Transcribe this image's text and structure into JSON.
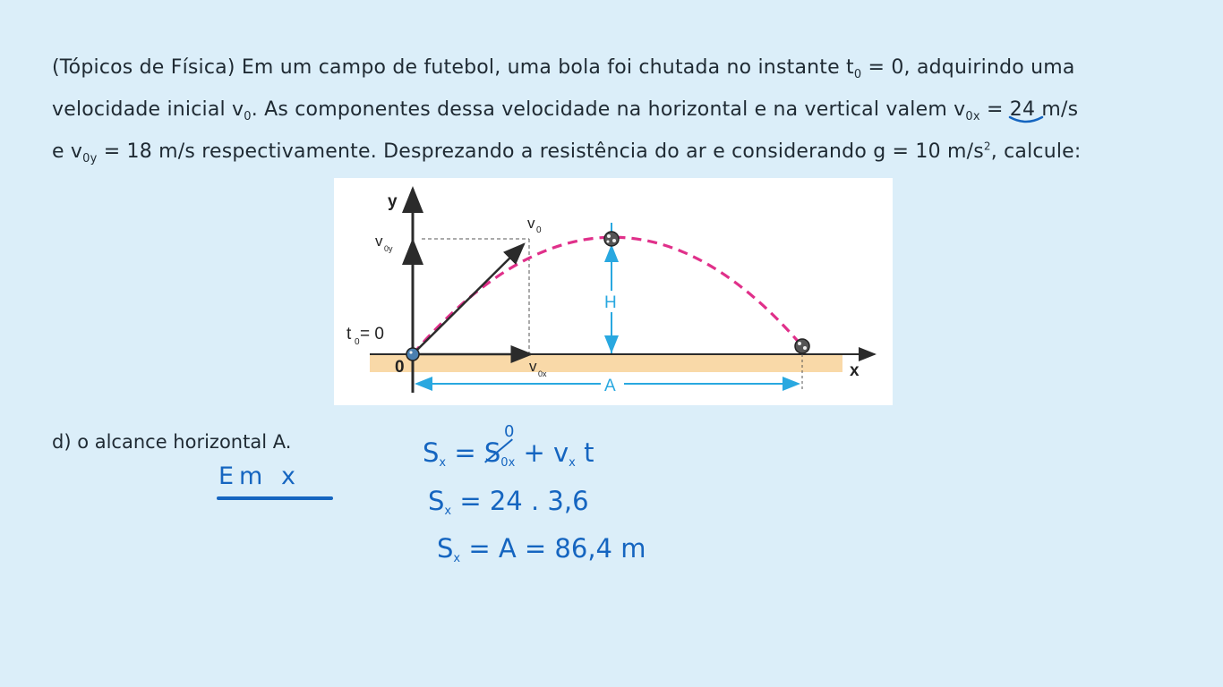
{
  "problem": {
    "line1": {
      "text": "(Tópicos de Física) Em um campo de futebol, uma bola foi chutada no instante t",
      "sub": "0",
      "text_after": " = 0, adquirindo uma"
    },
    "line2": {
      "text": "velocidade inicial v",
      "sub": "0",
      "text_mid": ". As componentes dessa velocidade na horizontal e na vertical valem v",
      "sub2": "0x",
      "text_eq": " = ",
      "value": "24",
      "text_after": " m/s"
    },
    "line3": {
      "text": "e v",
      "sub": "0y",
      "text_mid": " = 18 m/s respectivamente. Desprezando a resistência do ar e considerando g = 10 m/s",
      "sup": "2",
      "text_after": ", calcule:"
    }
  },
  "figure": {
    "y_label": "y",
    "x_label": "x",
    "v0_label": "v",
    "v0_sub": "0",
    "v0y_label": "v",
    "v0y_sub": "0y",
    "v0x_label": "v",
    "v0x_sub": "0x",
    "t0_label": "t",
    "t0_sub": "0",
    "t0_eq": " = 0",
    "origin_label": "0",
    "height_label": "H",
    "range_label": "A",
    "colors": {
      "trajectory": "#e0308a",
      "measure": "#29a8e0",
      "ground": "#f9d9a8",
      "axis": "#2b2b2b"
    }
  },
  "question": {
    "text": "d) o alcance horizontal A."
  },
  "handwriting": {
    "heading": "Em x",
    "eq1_pre": "S",
    "eq1_sub": "x",
    "eq1_mid": " = ",
    "eq1_struck": "S",
    "eq1_struck_sub": "0x",
    "eq1_zero": "0",
    "eq1_post": " + v",
    "eq1_post_sub": "x",
    "eq1_t": " t",
    "eq2": "S",
    "eq2_sub": "x",
    "eq2_rest": " = 24 . 3,6",
    "eq3": "S",
    "eq3_sub": "x",
    "eq3_rest": " = A = 86,4 m"
  }
}
